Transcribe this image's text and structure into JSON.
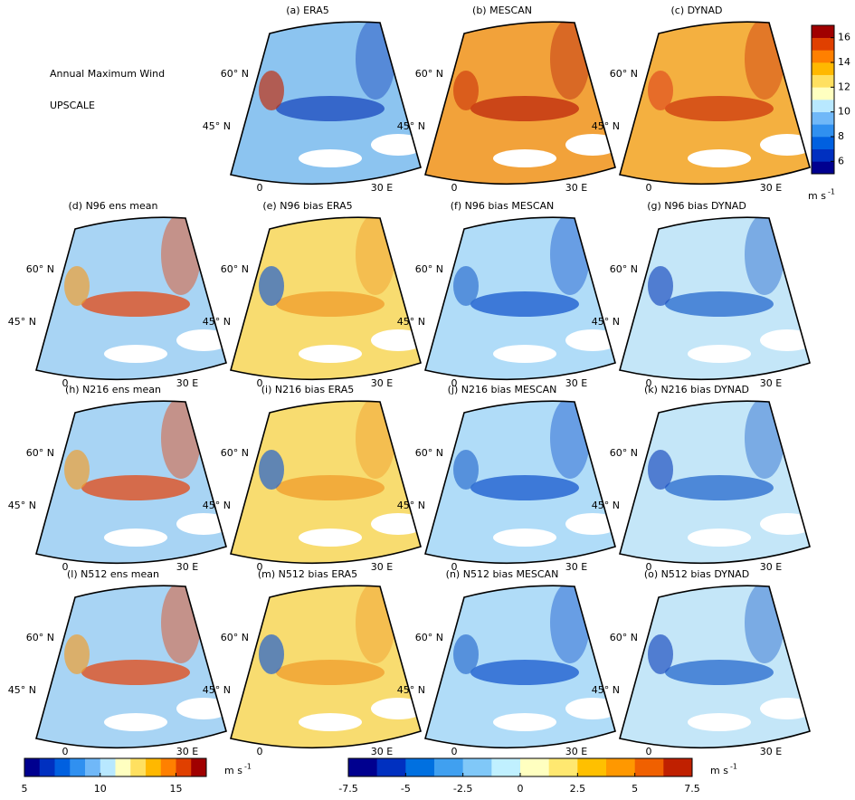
{
  "annotation": {
    "line1": "Annual Maximum Wind",
    "line2": "UPSCALE"
  },
  "panels": [
    {
      "title": "(a) ERA5"
    },
    {
      "title": "(b) MESCAN"
    },
    {
      "title": "(c) DYNAD"
    },
    {
      "title": "(d) N96 ens mean"
    },
    {
      "title": "(e) N96 bias ERA5"
    },
    {
      "title": "(f) N96 bias MESCAN"
    },
    {
      "title": "(g) N96 bias DYNAD"
    },
    {
      "title": "(h) N216 ens mean"
    },
    {
      "title": "(i) N216 bias ERA5"
    },
    {
      "title": "(j) N216 bias MESCAN"
    },
    {
      "title": "(k) N216 bias DYNAD"
    },
    {
      "title": "(l) N512 ens mean"
    },
    {
      "title": "(m) N512 bias ERA5"
    },
    {
      "title": "(n) N512 bias MESCAN"
    },
    {
      "title": "(o) N512 bias DYNAD"
    }
  ],
  "map_labels": {
    "lat60": "60° N",
    "lat45": "45° N",
    "lon0": "0",
    "lon30": "30  E"
  },
  "colorbars": [
    {
      "orientation": "vertical",
      "lim": [
        5,
        17
      ],
      "ticks": [
        6,
        8,
        10,
        12,
        14,
        16
      ],
      "unit": "m s",
      "unit_exp": "-1",
      "colors": [
        "#00008f",
        "#0030c0",
        "#0060e0",
        "#3090f0",
        "#70b8f8",
        "#b8e8ff",
        "#ffffc0",
        "#ffe060",
        "#ffb800",
        "#ff8000",
        "#e04000",
        "#a00000"
      ]
    },
    {
      "orientation": "horizontal",
      "lim": [
        5,
        17
      ],
      "ticks": [
        5,
        10,
        15
      ],
      "unit": "m s",
      "unit_exp": "-1",
      "colors": [
        "#00008f",
        "#0030c0",
        "#0060e0",
        "#3090f0",
        "#70b8f8",
        "#b8e8ff",
        "#ffffc0",
        "#ffe060",
        "#ffb800",
        "#ff8000",
        "#e04000",
        "#a00000"
      ]
    },
    {
      "orientation": "horizontal",
      "lim": [
        -7.5,
        7.5
      ],
      "ticks": [
        -7.5,
        -5,
        -2.5,
        0,
        2.5,
        5,
        7.5
      ],
      "unit": "m s",
      "unit_exp": "-1",
      "colors": [
        "#00008f",
        "#0030c0",
        "#0070e0",
        "#40a0f0",
        "#80c8f8",
        "#c0f0ff",
        "#ffffc0",
        "#ffe870",
        "#ffc000",
        "#ff9800",
        "#f06000",
        "#c02000"
      ]
    }
  ]
}
